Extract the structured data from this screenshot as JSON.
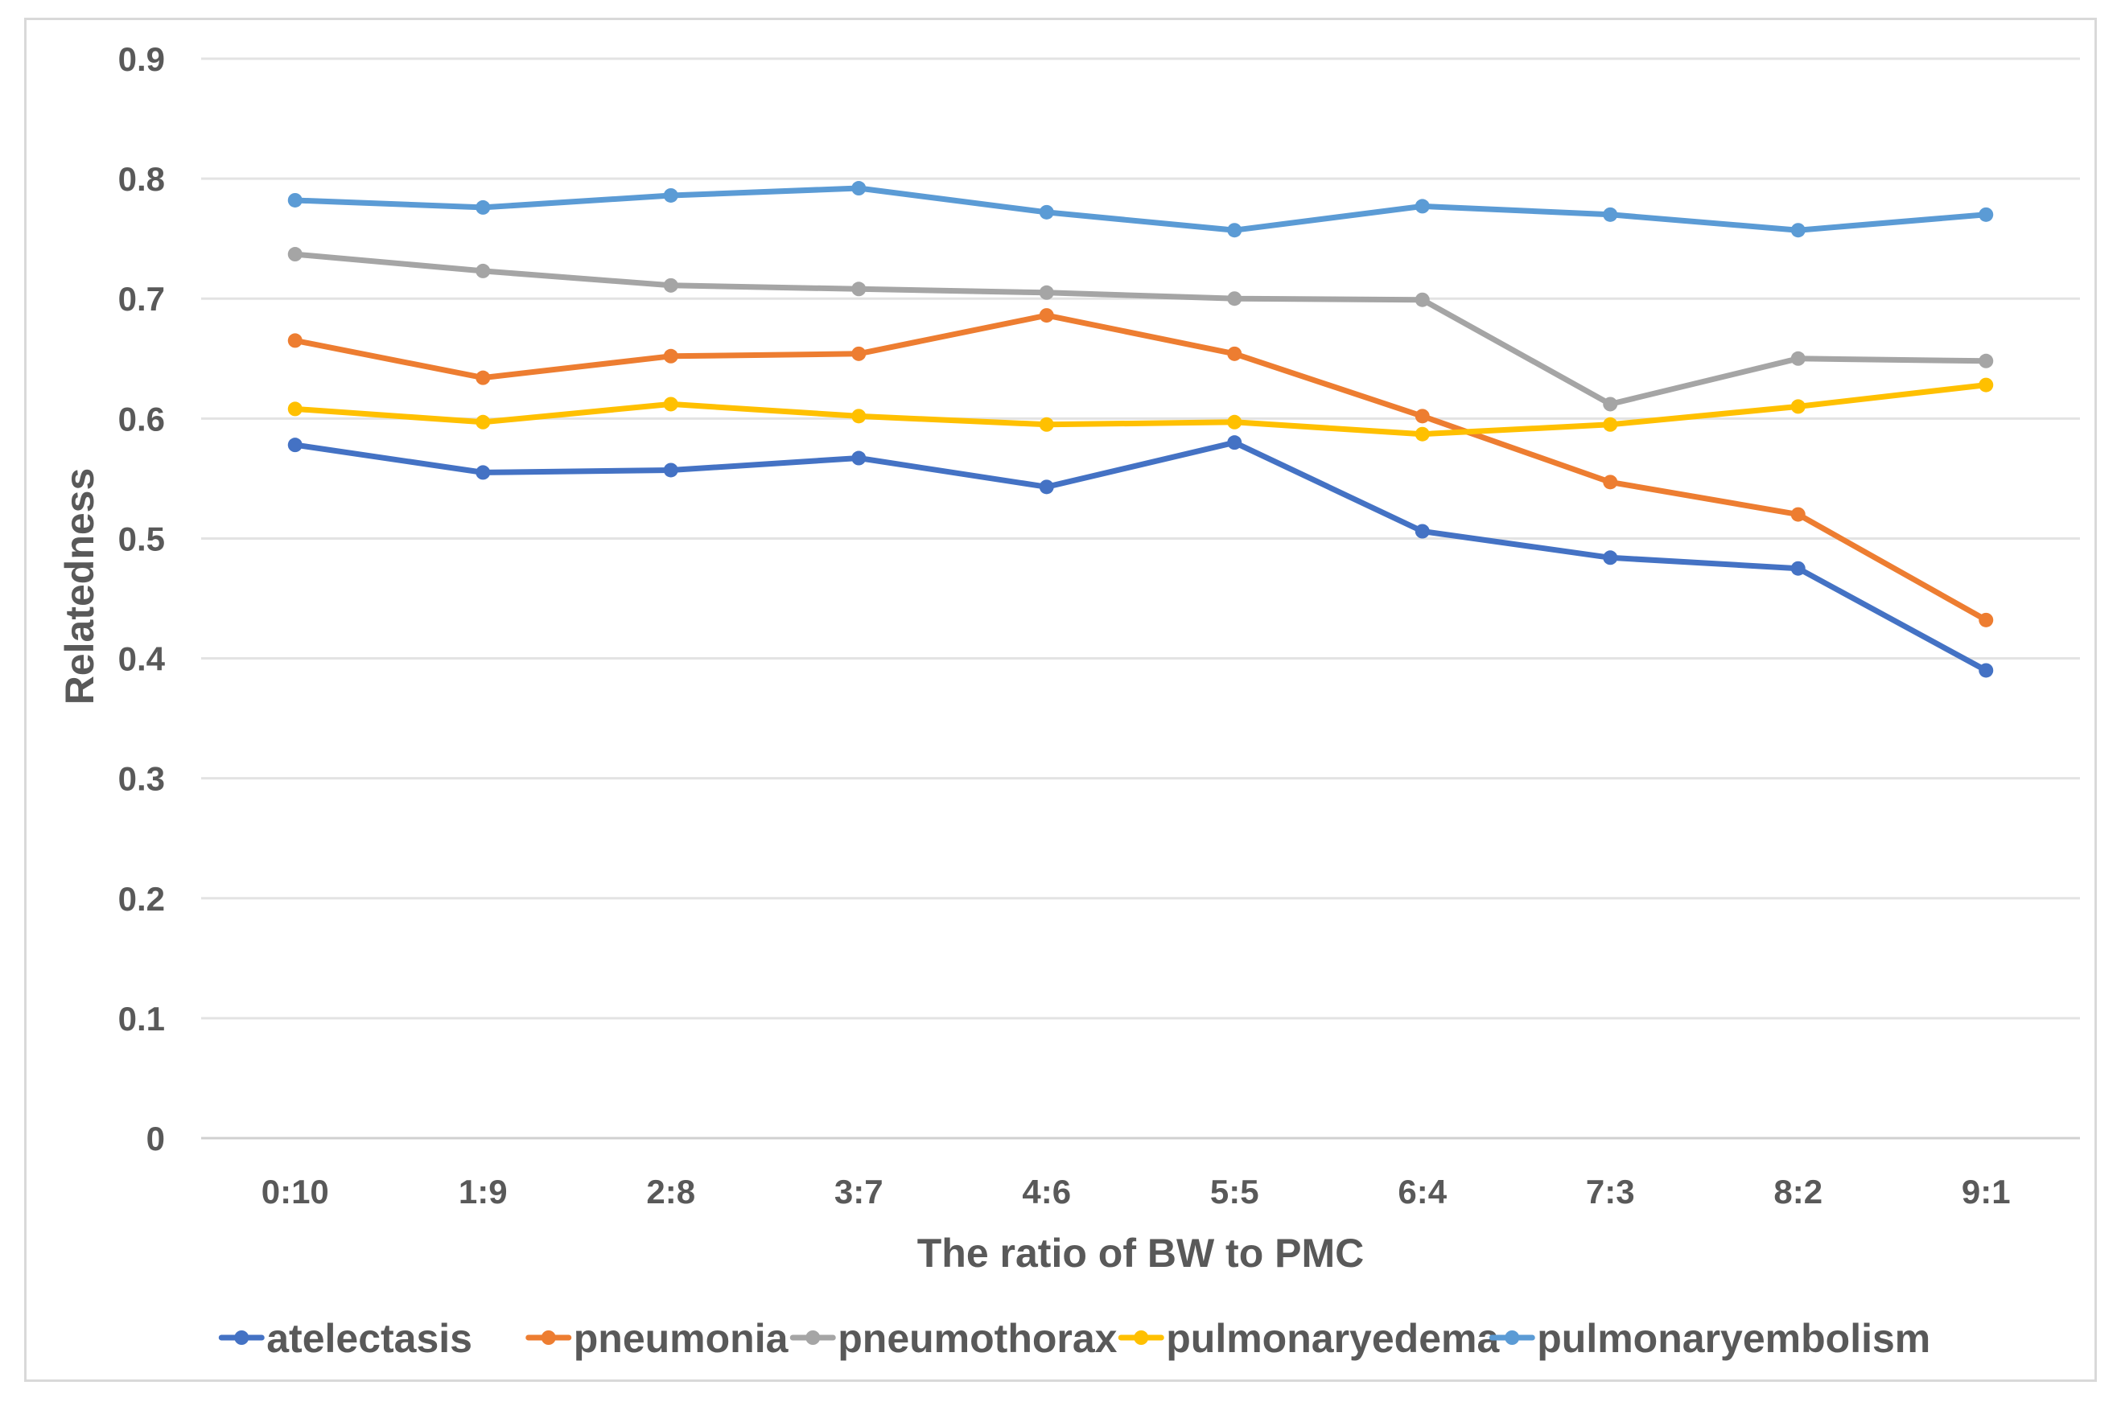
{
  "chart_data": {
    "type": "line",
    "title": "",
    "xlabel": "The ratio of BW to PMC",
    "ylabel": "Relatedness",
    "ylim": [
      0,
      0.9
    ],
    "ytick_step": 0.1,
    "yticks": [
      "0",
      "0.1",
      "0.2",
      "0.3",
      "0.4",
      "0.5",
      "0.6",
      "0.7",
      "0.8",
      "0.9"
    ],
    "grid": "horizontal",
    "legend_position": "bottom",
    "categories": [
      "0:10",
      "1:9",
      "2:8",
      "3:7",
      "4:6",
      "5:5",
      "6:4",
      "7:3",
      "8:2",
      "9:1"
    ],
    "series": [
      {
        "name": "atelectasis",
        "color": "#4472c4",
        "values": [
          0.578,
          0.555,
          0.557,
          0.567,
          0.543,
          0.58,
          0.506,
          0.484,
          0.475,
          0.39
        ]
      },
      {
        "name": "pneumonia",
        "color": "#ed7d31",
        "values": [
          0.665,
          0.634,
          0.652,
          0.654,
          0.686,
          0.654,
          0.602,
          0.547,
          0.52,
          0.432
        ]
      },
      {
        "name": "pneumothorax",
        "color": "#a5a5a5",
        "values": [
          0.737,
          0.723,
          0.711,
          0.708,
          0.705,
          0.7,
          0.699,
          0.612,
          0.65,
          0.648
        ]
      },
      {
        "name": "pulmonaryedema",
        "color": "#ffc000",
        "values": [
          0.608,
          0.597,
          0.612,
          0.602,
          0.595,
          0.597,
          0.587,
          0.595,
          0.61,
          0.628
        ]
      },
      {
        "name": "pulmonaryembolism",
        "color": "#5b9bd5",
        "values": [
          0.782,
          0.776,
          0.786,
          0.792,
          0.772,
          0.757,
          0.777,
          0.77,
          0.757,
          0.77
        ]
      }
    ]
  }
}
